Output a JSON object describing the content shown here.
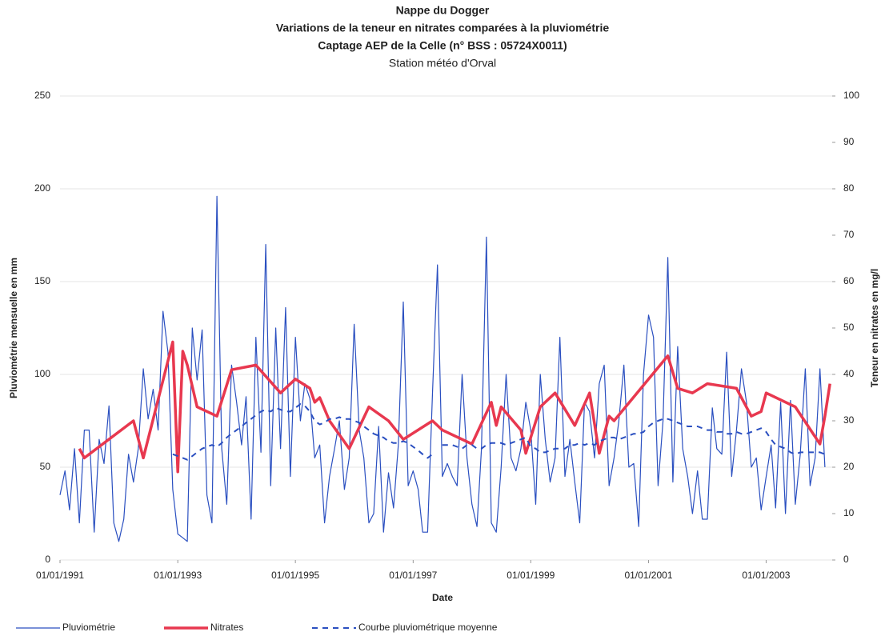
{
  "chart_data": {
    "type": "line",
    "title": "Nappe du Dogger",
    "subtitle": [
      "Variations de la teneur en nitrates comparées à la pluviométrie",
      "Captage AEP de la Celle (n° BSS :  05724X0011)",
      "Station météo d'Orval"
    ],
    "xlabel": "Date",
    "ylabel": "Pluviométrie mensuelle en mm",
    "y2label": "Teneur en nitrates en mg/l",
    "xlim": [
      "1991-01-01",
      "2004-02-15"
    ],
    "xticks": [
      {
        "value": "1991-01-01",
        "label": "01/01/1991"
      },
      {
        "value": "1993-01-01",
        "label": "01/01/1993"
      },
      {
        "value": "1995-01-01",
        "label": "01/01/1995"
      },
      {
        "value": "1997-01-01",
        "label": "01/01/1997"
      },
      {
        "value": "1999-01-01",
        "label": "01/01/1999"
      },
      {
        "value": "2001-01-01",
        "label": "01/01/2001"
      },
      {
        "value": "2003-01-01",
        "label": "01/01/2003"
      }
    ],
    "ylim": [
      0,
      250
    ],
    "yticks": [
      0,
      50,
      100,
      150,
      200,
      250
    ],
    "y2lim": [
      0,
      100
    ],
    "y2ticks": [
      0,
      10,
      20,
      30,
      40,
      50,
      60,
      70,
      80,
      90,
      100
    ],
    "grid": true,
    "legend": "bottom",
    "x": [
      "1991-01-01",
      "1991-02-01",
      "1991-03-01",
      "1991-04-01",
      "1991-05-01",
      "1991-06-01",
      "1991-07-01",
      "1991-08-01",
      "1991-09-01",
      "1991-10-01",
      "1991-11-01",
      "1991-12-01",
      "1992-01-01",
      "1992-02-01",
      "1992-03-01",
      "1992-04-01",
      "1992-05-01",
      "1992-06-01",
      "1992-07-01",
      "1992-08-01",
      "1992-09-01",
      "1992-10-01",
      "1992-11-01",
      "1992-12-01",
      "1993-01-01",
      "1993-02-01",
      "1993-03-01",
      "1993-04-01",
      "1993-05-01",
      "1993-06-01",
      "1993-07-01",
      "1993-08-01",
      "1993-09-01",
      "1993-10-01",
      "1993-11-01",
      "1993-12-01",
      "1994-01-01",
      "1994-02-01",
      "1994-03-01",
      "1994-04-01",
      "1994-05-01",
      "1994-06-01",
      "1994-07-01",
      "1994-08-01",
      "1994-09-01",
      "1994-10-01",
      "1994-11-01",
      "1994-12-01",
      "1995-01-01",
      "1995-02-01",
      "1995-03-01",
      "1995-04-01",
      "1995-05-01",
      "1995-06-01",
      "1995-07-01",
      "1995-08-01",
      "1995-09-01",
      "1995-10-01",
      "1995-11-01",
      "1995-12-01",
      "1996-01-01",
      "1996-02-01",
      "1996-03-01",
      "1996-04-01",
      "1996-05-01",
      "1996-06-01",
      "1996-07-01",
      "1996-08-01",
      "1996-09-01",
      "1996-10-01",
      "1996-11-01",
      "1996-12-01",
      "1997-01-01",
      "1997-02-01",
      "1997-03-01",
      "1997-04-01",
      "1997-05-01",
      "1997-06-01",
      "1997-07-01",
      "1997-08-01",
      "1997-09-01",
      "1997-10-01",
      "1997-11-01",
      "1997-12-01",
      "1998-01-01",
      "1998-02-01",
      "1998-03-01",
      "1998-04-01",
      "1998-05-01",
      "1998-06-01",
      "1998-07-01",
      "1998-08-01",
      "1998-09-01",
      "1998-10-01",
      "1998-11-01",
      "1998-12-01",
      "1999-01-01",
      "1999-02-01",
      "1999-03-01",
      "1999-04-01",
      "1999-05-01",
      "1999-06-01",
      "1999-07-01",
      "1999-08-01",
      "1999-09-01",
      "1999-10-01",
      "1999-11-01",
      "1999-12-01",
      "2000-01-01",
      "2000-02-01",
      "2000-03-01",
      "2000-04-01",
      "2000-05-01",
      "2000-06-01",
      "2000-07-01",
      "2000-08-01",
      "2000-09-01",
      "2000-10-01",
      "2000-11-01",
      "2000-12-01",
      "2001-01-01",
      "2001-02-01",
      "2001-03-01",
      "2001-04-01",
      "2001-05-01",
      "2001-06-01",
      "2001-07-01",
      "2001-08-01",
      "2001-09-01",
      "2001-10-01",
      "2001-11-01",
      "2001-12-01",
      "2002-01-01",
      "2002-02-01",
      "2002-03-01",
      "2002-04-01",
      "2002-05-01",
      "2002-06-01",
      "2002-07-01",
      "2002-08-01",
      "2002-09-01",
      "2002-10-01",
      "2002-11-01",
      "2002-12-01",
      "2003-01-01",
      "2003-02-01",
      "2003-03-01",
      "2003-04-01",
      "2003-05-01",
      "2003-06-01",
      "2003-07-01",
      "2003-08-01",
      "2003-09-01",
      "2003-10-01",
      "2003-11-01",
      "2003-12-01",
      "2004-01-01"
    ],
    "series": [
      {
        "name": "Pluviométrie",
        "color": "#2a4fc0",
        "width": 1.2,
        "linestyle": "solid",
        "values": [
          35,
          48,
          27,
          60,
          20,
          70,
          70,
          15,
          65,
          52,
          83,
          20,
          10,
          22,
          57,
          42,
          60,
          103,
          76,
          92,
          70,
          134,
          112,
          38,
          14,
          12,
          10,
          125,
          97,
          124,
          35,
          20,
          196,
          60,
          30,
          105,
          85,
          62,
          88,
          22,
          120,
          58,
          170,
          40,
          125,
          60,
          136,
          45,
          120,
          75,
          95,
          87,
          55,
          62,
          20,
          45,
          60,
          75,
          38,
          55,
          127,
          70,
          55,
          20,
          25,
          72,
          15,
          47,
          28,
          62,
          139,
          40,
          48,
          38,
          15,
          15,
          90,
          159,
          45,
          52,
          45,
          40,
          100,
          55,
          30,
          18,
          60,
          174,
          20,
          15,
          50,
          100,
          55,
          48,
          60,
          85,
          70,
          30,
          100,
          65,
          42,
          55,
          120,
          45,
          65,
          42,
          20,
          85,
          80,
          55,
          95,
          105,
          40,
          55,
          75,
          105,
          50,
          52,
          18,
          100,
          132,
          120,
          40,
          75,
          163,
          42,
          115,
          60,
          45,
          25,
          48,
          22,
          22,
          82,
          60,
          57,
          112,
          45,
          70,
          103,
          85,
          50,
          55,
          27,
          45,
          62,
          28,
          85,
          25,
          86,
          30,
          57,
          103,
          40,
          55,
          103,
          50
        ]
      },
      {
        "name": "Nitrates",
        "color": "#e8384f",
        "width": 3.5,
        "linestyle": "solid",
        "axis": "y2",
        "x": [
          "1991-05-01",
          "1991-06-01",
          "1992-04-01",
          "1992-06-01",
          "1992-12-01",
          "1993-01-01",
          "1993-02-01",
          "1993-03-01",
          "1993-05-01",
          "1993-09-01",
          "1993-12-01",
          "1994-05-01",
          "1994-10-01",
          "1995-01-01",
          "1995-04-01",
          "1995-05-01",
          "1995-06-01",
          "1995-08-01",
          "1995-12-01",
          "1996-04-01",
          "1996-08-01",
          "1996-11-01",
          "1997-05-01",
          "1997-07-01",
          "1998-01-01",
          "1998-05-01",
          "1998-06-01",
          "1998-07-01",
          "1998-11-01",
          "1998-12-01",
          "1999-03-01",
          "1999-06-01",
          "1999-10-01",
          "2000-01-01",
          "2000-03-01",
          "2000-05-01",
          "2000-06-01",
          "2001-05-01",
          "2001-07-01",
          "2001-10-01",
          "2002-01-01",
          "2002-07-01",
          "2002-10-01",
          "2002-12-01",
          "2003-01-01",
          "2003-07-01",
          "2003-12-01",
          "2004-01-01",
          "2004-02-01"
        ],
        "values": [
          24,
          22,
          30,
          22,
          47,
          19,
          45,
          42,
          33,
          31,
          41,
          42,
          36,
          39,
          37,
          34,
          35,
          30,
          24,
          33,
          30,
          26,
          30,
          28,
          25,
          34,
          29,
          33,
          28,
          23,
          33,
          36,
          29,
          36,
          23,
          31,
          30,
          44,
          37,
          36,
          38,
          37,
          31,
          32,
          36,
          33,
          25,
          31,
          38
        ]
      },
      {
        "name": "Courbe pluviométrique moyenne",
        "color": "#2a4fc0",
        "width": 2,
        "linestyle": "dashed",
        "values": [
          null,
          null,
          null,
          null,
          null,
          null,
          null,
          null,
          null,
          null,
          null,
          null,
          null,
          null,
          null,
          null,
          null,
          null,
          null,
          null,
          null,
          null,
          null,
          57,
          56,
          55,
          54,
          56,
          58,
          60,
          61,
          62,
          61,
          63,
          66,
          68,
          70,
          72,
          74,
          76,
          78,
          80,
          81,
          80,
          82,
          81,
          80,
          80,
          82,
          84,
          83,
          80,
          75,
          73,
          74,
          76,
          76,
          77,
          76,
          76,
          75,
          74,
          72,
          70,
          68,
          67,
          66,
          64,
          63,
          63,
          64,
          63,
          61,
          59,
          57,
          55,
          57,
          null,
          62,
          62,
          62,
          61,
          60,
          62,
          62,
          60,
          60,
          62,
          63,
          63,
          63,
          62,
          63,
          64,
          65,
          66,
          61,
          60,
          58,
          58,
          59,
          60,
          60,
          60,
          62,
          62,
          63,
          62,
          63,
          62,
          64,
          65,
          66,
          66,
          65,
          66,
          67,
          68,
          68,
          69,
          72,
          74,
          75,
          76,
          76,
          75,
          74,
          73,
          72,
          72,
          72,
          71,
          70,
          70,
          69,
          69,
          68,
          68,
          69,
          68,
          68,
          69,
          70,
          71,
          69,
          65,
          62,
          61,
          60,
          58,
          57,
          58,
          58,
          58,
          58,
          58,
          57
        ]
      }
    ]
  }
}
